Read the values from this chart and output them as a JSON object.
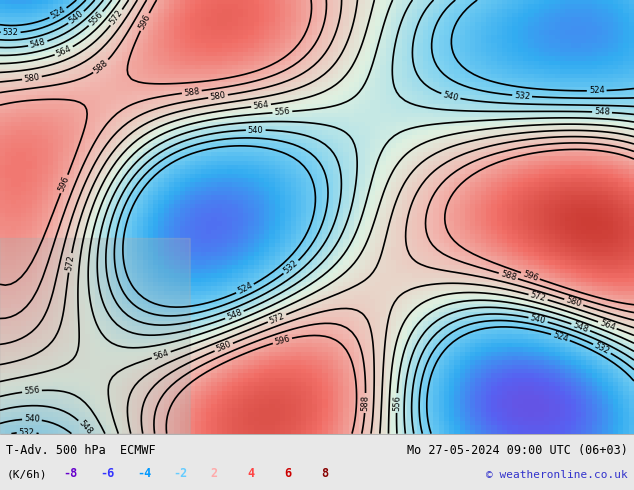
{
  "title_left": "T-Adv. 500 hPa  ECMWF",
  "title_right": "Mo 27-05-2024 09:00 UTC (06+03)",
  "unit_label": "(K/6h)",
  "copyright": "© weatheronline.co.uk",
  "legend_values": [
    -8,
    -6,
    -4,
    -2,
    2,
    4,
    6,
    8
  ],
  "legend_colors": [
    "#6600cc",
    "#3333ff",
    "#0099ff",
    "#66ccff",
    "#ffaaaa",
    "#ff4444",
    "#cc0000",
    "#880000"
  ],
  "bg_color": "#e8e8e8",
  "map_bg": "#d4edda",
  "fig_width": 6.34,
  "fig_height": 4.9,
  "bottom_bar_height": 0.115
}
